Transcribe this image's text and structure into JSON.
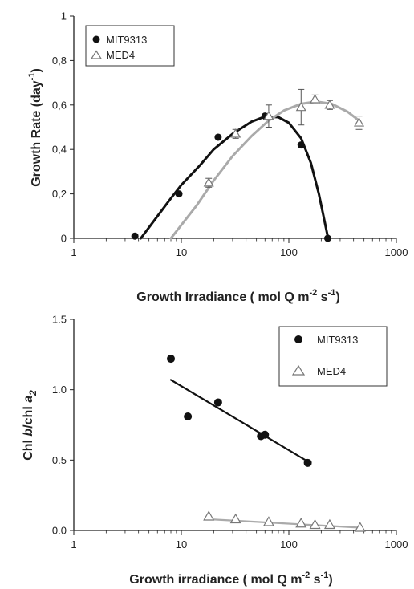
{
  "chart_data": [
    {
      "type": "scatter",
      "title": "",
      "xlabel": "Growth Irradiance (  mol Q m",
      "xlabel_sup1": "-2",
      "xlabel_mid": " s",
      "xlabel_sup2": "-1",
      "xlabel_end": ")",
      "ylabel": "Growth Rate (day",
      "ylabel_sup": "-1",
      "ylabel_end": ")",
      "xscale": "log",
      "xlim": [
        1,
        1000
      ],
      "ylim": [
        0,
        1
      ],
      "xticks": [
        1,
        10,
        100,
        1000
      ],
      "xtick_labels": [
        "1",
        "10",
        "100",
        "1000"
      ],
      "yticks": [
        0,
        0.2,
        0.4,
        0.6,
        0.8,
        1.0
      ],
      "ytick_labels": [
        "0",
        "0,2",
        "0,4",
        "0,6",
        "0,8",
        "1"
      ],
      "legend_position": "top-left",
      "series": [
        {
          "name": "MIT9313",
          "marker": "filled-circle",
          "color": "#111111",
          "x": [
            3.7,
            9.5,
            22,
            60,
            130,
            230
          ],
          "y": [
            0.01,
            0.2,
            0.455,
            0.55,
            0.42,
            0.0
          ],
          "fit_curve": {
            "color": "#111111",
            "x": [
              4.2,
              6,
              8,
              10,
              15,
              20,
              30,
              45,
              60,
              80,
              100,
              130,
              160,
              190,
              210,
              225,
              232
            ],
            "y": [
              0,
              0.1,
              0.18,
              0.24,
              0.33,
              0.4,
              0.47,
              0.525,
              0.548,
              0.545,
              0.52,
              0.45,
              0.34,
              0.2,
              0.1,
              0.03,
              0
            ]
          }
        },
        {
          "name": "MED4",
          "marker": "open-triangle",
          "color": "#999999",
          "x": [
            18,
            32,
            65,
            130,
            175,
            240,
            450
          ],
          "y": [
            0.25,
            0.47,
            0.55,
            0.59,
            0.625,
            0.6,
            0.52
          ],
          "err": [
            0.02,
            0.02,
            0.05,
            0.08,
            0.02,
            0.02,
            0.03
          ],
          "fit_curve": {
            "color": "#aaaaaa",
            "x": [
              8,
              10,
              14,
              20,
              30,
              45,
              65,
              90,
              130,
              180,
              250,
              350,
              450
            ],
            "y": [
              0,
              0.06,
              0.15,
              0.26,
              0.37,
              0.46,
              0.53,
              0.575,
              0.605,
              0.615,
              0.605,
              0.57,
              0.53
            ]
          }
        }
      ]
    },
    {
      "type": "scatter",
      "title": "",
      "xlabel": "Growth irradiance (  mol Q m",
      "xlabel_sup1": "-2",
      "xlabel_mid": " s",
      "xlabel_sup2": "-1",
      "xlabel_end": ")",
      "ylabel_parts": [
        "Chl ",
        "b",
        "/chl ",
        "a",
        "2"
      ],
      "xscale": "log",
      "xlim": [
        1,
        1000
      ],
      "ylim": [
        0,
        1.5
      ],
      "xticks": [
        1,
        10,
        100,
        1000
      ],
      "xtick_labels": [
        "1",
        "10",
        "100",
        "1000"
      ],
      "yticks": [
        0,
        0.5,
        1.0,
        1.5
      ],
      "ytick_labels": [
        "0.0",
        "0.5",
        "1.0",
        "1.5"
      ],
      "legend_position": "top-right",
      "series": [
        {
          "name": "MIT9313",
          "marker": "filled-circle",
          "color": "#111111",
          "x": [
            8,
            11.5,
            22,
            55,
            60,
            150
          ],
          "y": [
            1.22,
            0.81,
            0.91,
            0.67,
            0.68,
            0.48
          ],
          "fit_line": {
            "color": "#111111",
            "x": [
              8,
              150
            ],
            "y": [
              1.07,
              0.49
            ]
          }
        },
        {
          "name": "MED4",
          "marker": "open-triangle",
          "color": "#999999",
          "x": [
            18,
            32,
            65,
            130,
            175,
            240,
            460
          ],
          "y": [
            0.1,
            0.08,
            0.06,
            0.05,
            0.04,
            0.04,
            0.02
          ],
          "fit_line": {
            "color": "#aaaaaa",
            "x": [
              18,
              460
            ],
            "y": [
              0.08,
              0.02
            ]
          }
        }
      ]
    }
  ]
}
